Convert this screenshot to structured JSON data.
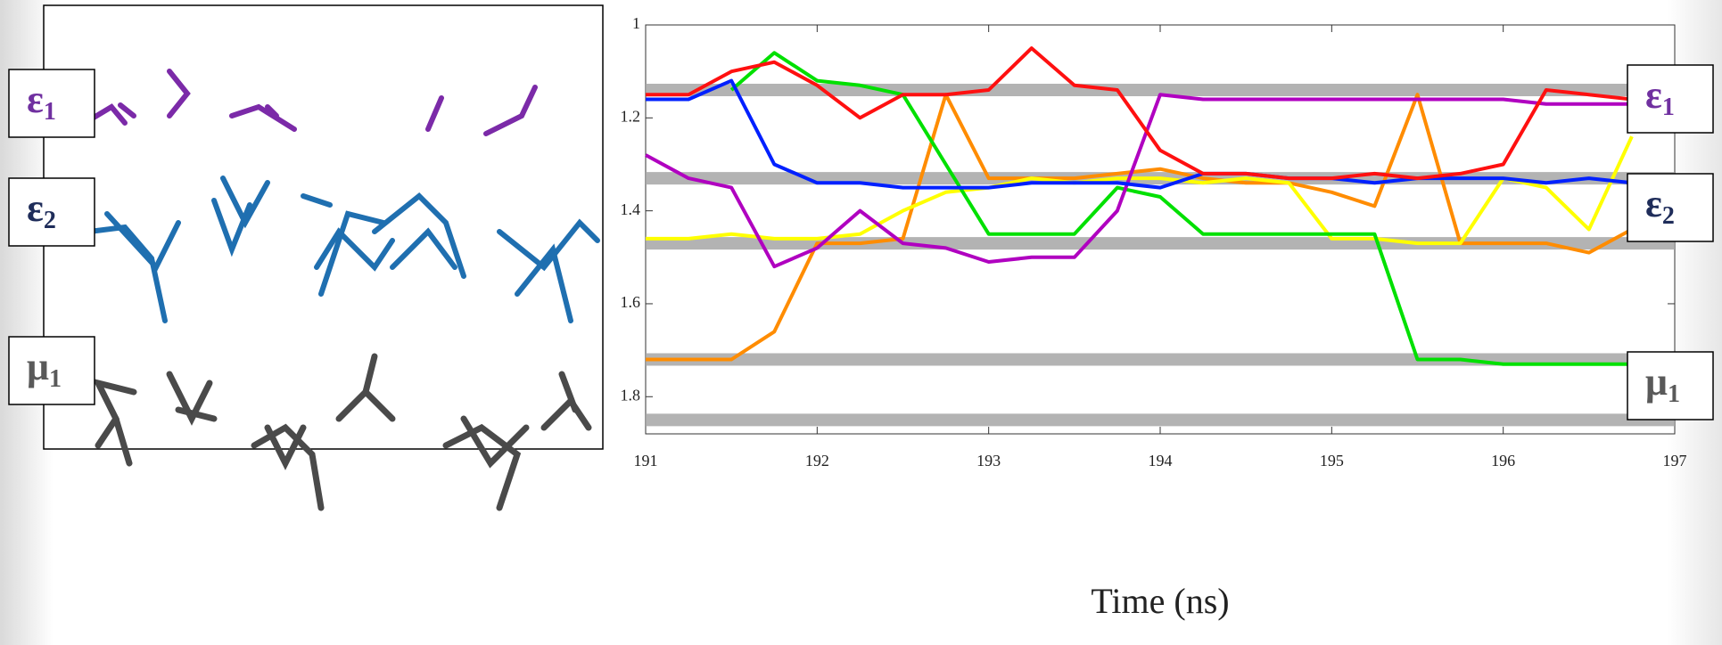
{
  "chart_data": {
    "type": "line",
    "xlabel": "Time (ns)",
    "x": [
      191,
      191.25,
      191.5,
      191.75,
      192,
      192.25,
      192.5,
      192.75,
      193,
      193.25,
      193.5,
      193.75,
      194,
      194.25,
      194.5,
      194.75,
      195,
      195.25,
      195.5,
      195.75,
      196,
      196.25,
      196.5,
      196.75,
      197
    ],
    "xlim": [
      191,
      197
    ],
    "xticks": [
      191,
      192,
      193,
      194,
      195,
      196,
      197
    ],
    "ylim": [
      1,
      1.88
    ],
    "yticks": [
      1,
      1.2,
      1.4,
      1.6,
      1.8
    ],
    "y_inverted": true,
    "series": [
      {
        "color": "#a6a6a6",
        "style": "band",
        "values": [
          1.14,
          1.14,
          1.14,
          1.14,
          1.14,
          1.14,
          1.14,
          1.14,
          1.14,
          1.14,
          1.14,
          1.14,
          1.14,
          1.14,
          1.14,
          1.14,
          1.14,
          1.14,
          1.14,
          1.14,
          1.14,
          1.14,
          1.14,
          1.14,
          1.14
        ]
      },
      {
        "color": "#a6a6a6",
        "style": "band",
        "values": [
          1.33,
          1.33,
          1.33,
          1.33,
          1.33,
          1.33,
          1.33,
          1.33,
          1.33,
          1.33,
          1.33,
          1.33,
          1.33,
          1.33,
          1.33,
          1.33,
          1.33,
          1.33,
          1.33,
          1.33,
          1.33,
          1.33,
          1.33,
          1.33,
          1.33
        ]
      },
      {
        "color": "#a6a6a6",
        "style": "band",
        "values": [
          1.47,
          1.47,
          1.47,
          1.47,
          1.47,
          1.47,
          1.47,
          1.47,
          1.47,
          1.47,
          1.47,
          1.47,
          1.47,
          1.47,
          1.47,
          1.47,
          1.47,
          1.47,
          1.47,
          1.47,
          1.47,
          1.47,
          1.47,
          1.47,
          1.47
        ]
      },
      {
        "color": "#a6a6a6",
        "style": "band",
        "values": [
          1.72,
          1.72,
          1.72,
          1.72,
          1.72,
          1.72,
          1.72,
          1.72,
          1.72,
          1.72,
          1.72,
          1.72,
          1.72,
          1.72,
          1.72,
          1.72,
          1.72,
          1.72,
          1.72,
          1.72,
          1.72,
          1.72,
          1.72,
          1.72,
          1.72
        ]
      },
      {
        "color": "#a6a6a6",
        "style": "band",
        "values": [
          1.85,
          1.85,
          1.85,
          1.85,
          1.85,
          1.85,
          1.85,
          1.85,
          1.85,
          1.85,
          1.85,
          1.85,
          1.85,
          1.85,
          1.85,
          1.85,
          1.85,
          1.85,
          1.85,
          1.85,
          1.85,
          1.85,
          1.85,
          1.85,
          1.85
        ]
      },
      {
        "color": "#ff8c00",
        "values": [
          1.72,
          1.72,
          1.72,
          1.66,
          1.47,
          1.47,
          1.46,
          1.15,
          1.33,
          1.33,
          1.33,
          1.32,
          1.31,
          1.33,
          1.34,
          1.34,
          1.36,
          1.39,
          1.15,
          1.47,
          1.47,
          1.47,
          1.49,
          1.44,
          null
        ]
      },
      {
        "color": "#ffff00",
        "values": [
          1.46,
          1.46,
          1.45,
          1.46,
          1.46,
          1.45,
          1.4,
          1.36,
          1.35,
          1.33,
          1.34,
          1.33,
          1.33,
          1.34,
          1.33,
          1.34,
          1.46,
          1.46,
          1.47,
          1.47,
          1.33,
          1.35,
          1.44,
          1.24,
          null
        ]
      },
      {
        "color": "#00e000",
        "values": [
          null,
          null,
          1.14,
          1.06,
          1.12,
          1.13,
          1.15,
          1.3,
          1.45,
          1.45,
          1.45,
          1.35,
          1.37,
          1.45,
          1.45,
          1.45,
          1.45,
          1.45,
          1.72,
          1.72,
          1.73,
          1.73,
          1.73,
          1.73,
          null
        ]
      },
      {
        "color": "#b000c0",
        "values": [
          1.28,
          1.33,
          1.35,
          1.52,
          1.48,
          1.4,
          1.47,
          1.48,
          1.51,
          1.5,
          1.5,
          1.4,
          1.15,
          1.16,
          1.16,
          1.16,
          1.16,
          1.16,
          1.16,
          1.16,
          1.16,
          1.17,
          1.17,
          1.17,
          null
        ]
      },
      {
        "color": "#0020ff",
        "values": [
          1.16,
          1.16,
          1.12,
          1.3,
          1.34,
          1.34,
          1.35,
          1.35,
          1.35,
          1.34,
          1.34,
          1.34,
          1.35,
          1.32,
          1.32,
          1.33,
          1.33,
          1.34,
          1.33,
          1.33,
          1.33,
          1.34,
          1.33,
          1.34,
          null
        ]
      },
      {
        "color": "#ff1010",
        "values": [
          1.15,
          1.15,
          1.1,
          1.08,
          1.13,
          1.2,
          1.15,
          1.15,
          1.14,
          1.05,
          1.13,
          1.14,
          1.27,
          1.32,
          1.32,
          1.33,
          1.33,
          1.32,
          1.33,
          1.32,
          1.3,
          1.14,
          1.15,
          1.16,
          null
        ]
      }
    ],
    "annotations": [
      {
        "symbol": "ε",
        "subscript": "1",
        "color": "#7030a0"
      },
      {
        "symbol": "ε",
        "subscript": "2",
        "color": "#1f2d5a"
      },
      {
        "symbol": "μ",
        "subscript": "1",
        "color": "#595959"
      }
    ]
  }
}
